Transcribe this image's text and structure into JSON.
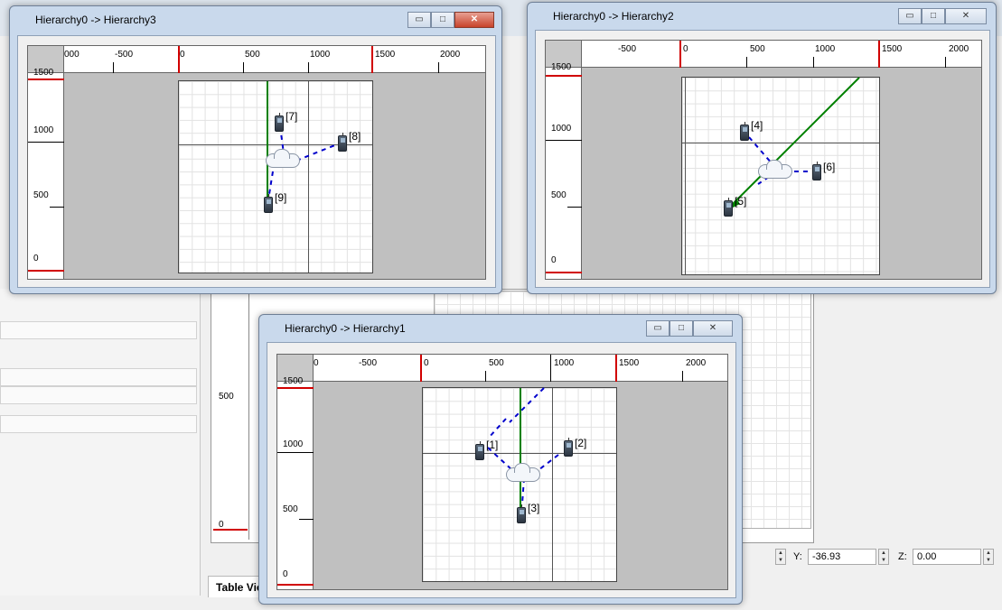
{
  "background": {
    "table_tab_label": "Table Vie",
    "canvas_labels": [
      "500",
      "0"
    ],
    "status": {
      "y_label": "Y:",
      "y_value": "-36.93",
      "z_label": "Z:",
      "z_value": "0.00"
    }
  },
  "windows": [
    {
      "id": "h3",
      "title": "Hierarchy0 -> Hierarchy3",
      "x_labels": [
        "000",
        "-500",
        "0",
        "500",
        "1000",
        "1500",
        "2000"
      ],
      "y_labels": [
        "1500",
        "1000",
        "500",
        "0"
      ],
      "nodes": [
        {
          "label": "[7]"
        },
        {
          "label": "[8]"
        },
        {
          "label": "[9]"
        }
      ]
    },
    {
      "id": "h2",
      "title": "Hierarchy0 -> Hierarchy2",
      "x_labels": [
        "-500",
        "0",
        "500",
        "1000",
        "1500",
        "2000"
      ],
      "y_labels": [
        "1500",
        "1000",
        "500",
        "0"
      ],
      "nodes": [
        {
          "label": "[4]"
        },
        {
          "label": "[5]"
        },
        {
          "label": "[6]"
        }
      ]
    },
    {
      "id": "h1",
      "title": "Hierarchy0 -> Hierarchy1",
      "x_labels": [
        "0",
        "-500",
        "0",
        "500",
        "1000",
        "1500",
        "2000"
      ],
      "y_labels": [
        "1500",
        "1000",
        "500",
        "0"
      ],
      "nodes": [
        {
          "label": "[1]"
        },
        {
          "label": "[2]"
        },
        {
          "label": "[3]"
        }
      ]
    }
  ],
  "controls": {
    "minimize": "▭",
    "maximize": "□",
    "close": "✕"
  },
  "colors": {
    "link": "#0000cc",
    "route": "#008000",
    "boundary": "#d10000"
  }
}
